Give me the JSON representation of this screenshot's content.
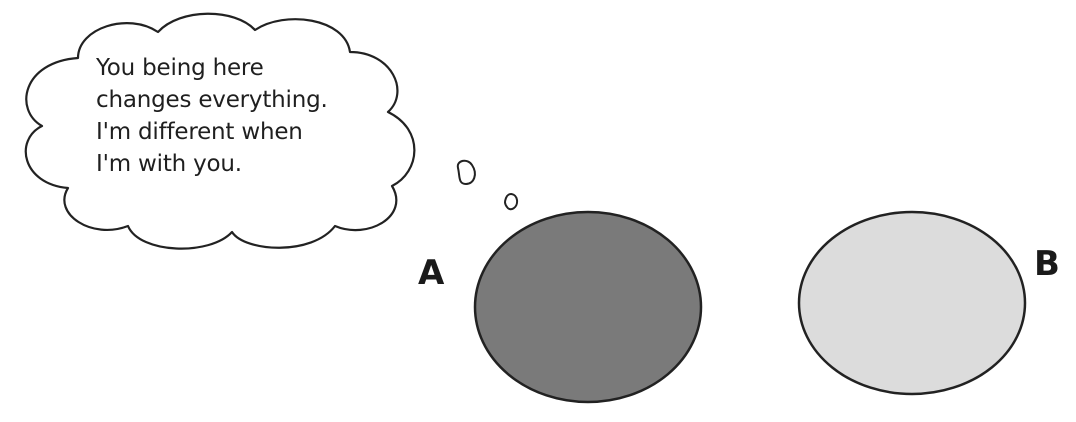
{
  "thought_bubble": {
    "lines": [
      "You being here",
      "changes everything.",
      "I'm different when",
      "I'm with you."
    ]
  },
  "objects": [
    {
      "label": "A",
      "fill": "#7a7a7a",
      "stroke": "#222222"
    },
    {
      "label": "B",
      "fill": "#dcdcdc",
      "stroke": "#222222"
    }
  ]
}
